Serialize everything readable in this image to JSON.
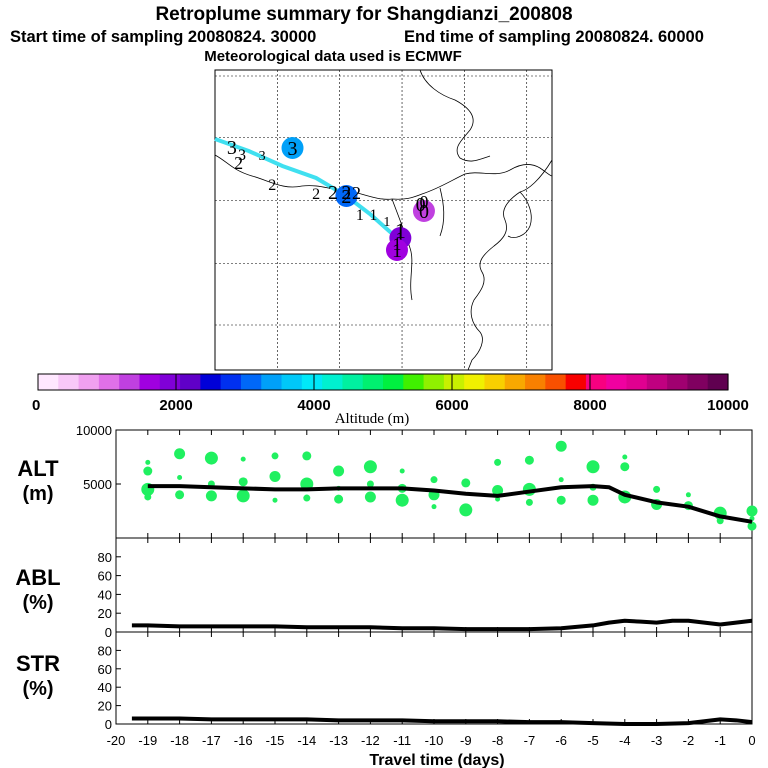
{
  "header": {
    "title": "Retroplume summary for Shangdianzi_200808",
    "start_label": "Start time of sampling 20080824. 30000",
    "end_label": "End time of sampling 20080824. 60000",
    "met_label": "Meteorological data used is ECMWF"
  },
  "colorbar": {
    "title": "Altitude (m)",
    "min": 0,
    "max": 10000,
    "ticks": [
      "0",
      "2000",
      "4000",
      "6000",
      "8000",
      "10000"
    ],
    "tick_values": [
      0,
      2000,
      4000,
      6000,
      8000,
      10000
    ],
    "colors": [
      "#ffe8ff",
      "#f8c8f8",
      "#f0a0f0",
      "#e070e8",
      "#c040e0",
      "#a000e0",
      "#8000d8",
      "#6000c8",
      "#0000d8",
      "#0030f0",
      "#0068f8",
      "#00a0f8",
      "#00c8f8",
      "#00e8f8",
      "#00f0d0",
      "#00f0a0",
      "#00f070",
      "#00f040",
      "#40f000",
      "#90f000",
      "#c8f000",
      "#f0f000",
      "#f8d000",
      "#f8a800",
      "#f88000",
      "#f85000",
      "#f80000",
      "#f80080",
      "#f000a0",
      "#e00090",
      "#c00080",
      "#a00070",
      "#800060",
      "#600050"
    ]
  },
  "map": {
    "trajectory_labels": [
      {
        "text": "3",
        "lon": 0.05,
        "lat": 0.28,
        "size": 20
      },
      {
        "text": "3",
        "lon": 0.08,
        "lat": 0.3,
        "size": 16
      },
      {
        "text": "3",
        "lon": 0.14,
        "lat": 0.3,
        "size": 14
      },
      {
        "text": "2",
        "lon": 0.07,
        "lat": 0.33,
        "size": 18
      },
      {
        "text": "2",
        "lon": 0.17,
        "lat": 0.4,
        "size": 16
      },
      {
        "text": "2",
        "lon": 0.3,
        "lat": 0.43,
        "size": 16
      },
      {
        "text": "2",
        "lon": 0.35,
        "lat": 0.43,
        "size": 20
      },
      {
        "text": "2",
        "lon": 0.39,
        "lat": 0.43,
        "size": 20
      },
      {
        "text": "2",
        "lon": 0.42,
        "lat": 0.43,
        "size": 18
      },
      {
        "text": "1",
        "lon": 0.43,
        "lat": 0.5,
        "size": 16
      },
      {
        "text": "1",
        "lon": 0.47,
        "lat": 0.5,
        "size": 16
      },
      {
        "text": "1",
        "lon": 0.51,
        "lat": 0.52,
        "size": 14
      },
      {
        "text": "1",
        "lon": 0.55,
        "lat": 0.56,
        "size": 22
      },
      {
        "text": "1",
        "lon": 0.54,
        "lat": 0.6,
        "size": 18
      },
      {
        "text": "0",
        "lon": 0.61,
        "lat": 0.47,
        "size": 20
      },
      {
        "text": "0",
        "lon": 0.62,
        "lat": 0.46,
        "size": 18
      }
    ],
    "trajectory_circles": [
      {
        "text": "3",
        "lon": 0.23,
        "lat": 0.26,
        "alt": 3500
      },
      {
        "text": "2",
        "lon": 0.39,
        "lat": 0.42,
        "alt": 3000
      },
      {
        "text": "1",
        "lon": 0.55,
        "lat": 0.56,
        "alt": 1900
      },
      {
        "text": "1",
        "lon": 0.54,
        "lat": 0.6,
        "alt": 1500
      },
      {
        "text": "0",
        "lon": 0.62,
        "lat": 0.47,
        "alt": 1200
      }
    ],
    "trajectory_line": {
      "lon": [
        0.0,
        0.1,
        0.2,
        0.3,
        0.39,
        0.46,
        0.53,
        0.55
      ],
      "lat": [
        0.23,
        0.27,
        0.32,
        0.36,
        0.42,
        0.48,
        0.55,
        0.58
      ],
      "color": "#40e0f0"
    }
  },
  "chart_data": [
    {
      "type": "line",
      "id": "ALT",
      "ylabel_line1": "ALT",
      "ylabel_line2": "(m)",
      "ylim": [
        0,
        10000
      ],
      "yticks": [
        0,
        5000,
        10000
      ],
      "ytick_labels": [
        "5000",
        "10000"
      ],
      "x": [
        -19,
        -18,
        -17,
        -16,
        -15,
        -14,
        -13,
        -12,
        -11,
        -10,
        -9,
        -8,
        -7,
        -6,
        -5,
        -4.5,
        -4,
        -3,
        -2,
        -1,
        0
      ],
      "y": [
        4800,
        4800,
        4700,
        4600,
        4500,
        4500,
        4600,
        4600,
        4600,
        4400,
        4100,
        3900,
        4300,
        4700,
        4800,
        4700,
        4000,
        3300,
        2900,
        2000,
        1500
      ],
      "scatter": [
        {
          "x": -19,
          "y": 7000
        },
        {
          "x": -19,
          "y": 6200
        },
        {
          "x": -19,
          "y": 4500
        },
        {
          "x": -19,
          "y": 3800
        },
        {
          "x": -18,
          "y": 7800
        },
        {
          "x": -18,
          "y": 5600
        },
        {
          "x": -18,
          "y": 4000
        },
        {
          "x": -17,
          "y": 7400
        },
        {
          "x": -17,
          "y": 5000
        },
        {
          "x": -17,
          "y": 3900
        },
        {
          "x": -16,
          "y": 7300
        },
        {
          "x": -16,
          "y": 5200
        },
        {
          "x": -16,
          "y": 3900
        },
        {
          "x": -15,
          "y": 7600
        },
        {
          "x": -15,
          "y": 5700
        },
        {
          "x": -15,
          "y": 3500
        },
        {
          "x": -14,
          "y": 7600
        },
        {
          "x": -14,
          "y": 5000
        },
        {
          "x": -14,
          "y": 3700
        },
        {
          "x": -13,
          "y": 6200
        },
        {
          "x": -13,
          "y": 4600
        },
        {
          "x": -13,
          "y": 3600
        },
        {
          "x": -12,
          "y": 6600
        },
        {
          "x": -12,
          "y": 5000
        },
        {
          "x": -12,
          "y": 3800
        },
        {
          "x": -11,
          "y": 6200
        },
        {
          "x": -11,
          "y": 4600
        },
        {
          "x": -11,
          "y": 3500
        },
        {
          "x": -10,
          "y": 5400
        },
        {
          "x": -10,
          "y": 4000
        },
        {
          "x": -10,
          "y": 2900
        },
        {
          "x": -9,
          "y": 5100
        },
        {
          "x": -9,
          "y": 2600
        },
        {
          "x": -8,
          "y": 7000
        },
        {
          "x": -8,
          "y": 4400
        },
        {
          "x": -8,
          "y": 3600
        },
        {
          "x": -7,
          "y": 7200
        },
        {
          "x": -7,
          "y": 4500
        },
        {
          "x": -7,
          "y": 3300
        },
        {
          "x": -6,
          "y": 8500
        },
        {
          "x": -6,
          "y": 5400
        },
        {
          "x": -6,
          "y": 3500
        },
        {
          "x": -5,
          "y": 6600
        },
        {
          "x": -5,
          "y": 4700
        },
        {
          "x": -5,
          "y": 3500
        },
        {
          "x": -4,
          "y": 7500
        },
        {
          "x": -4,
          "y": 6600
        },
        {
          "x": -4,
          "y": 3800
        },
        {
          "x": -3,
          "y": 4500
        },
        {
          "x": -3,
          "y": 3100
        },
        {
          "x": -2,
          "y": 4000
        },
        {
          "x": -2,
          "y": 3000
        },
        {
          "x": -1,
          "y": 2300
        },
        {
          "x": -1,
          "y": 1600
        },
        {
          "x": 0,
          "y": 2500
        },
        {
          "x": 0,
          "y": 1800
        },
        {
          "x": 0,
          "y": 1100
        }
      ]
    },
    {
      "type": "line",
      "id": "ABL",
      "ylabel_line1": "ABL",
      "ylabel_line2": "(%)",
      "ylim": [
        0,
        100
      ],
      "yticks": [
        0,
        20,
        40,
        60,
        80
      ],
      "ytick_labels": [
        "0",
        "20",
        "40",
        "60",
        "80"
      ],
      "x": [
        -19.5,
        -19,
        -18,
        -17,
        -16,
        -15,
        -14,
        -13,
        -12,
        -11,
        -10,
        -9,
        -8,
        -7,
        -6,
        -5,
        -4.5,
        -4,
        -3.5,
        -3,
        -2.5,
        -2,
        -1.5,
        -1,
        -0.5,
        0
      ],
      "y": [
        7,
        7,
        6,
        6,
        6,
        6,
        5,
        5,
        5,
        4,
        4,
        3,
        3,
        3,
        4,
        7,
        10,
        12,
        11,
        10,
        12,
        12,
        10,
        8,
        10,
        12
      ]
    },
    {
      "type": "line",
      "id": "STR",
      "ylabel_line1": "STR",
      "ylabel_line2": "(%)",
      "ylim": [
        0,
        100
      ],
      "yticks": [
        0,
        20,
        40,
        60,
        80
      ],
      "ytick_labels": [
        "0",
        "20",
        "40",
        "60",
        "80"
      ],
      "x": [
        -19.5,
        -19,
        -18,
        -17,
        -16,
        -15,
        -14,
        -13,
        -12,
        -11,
        -10,
        -9,
        -8,
        -7,
        -6,
        -5,
        -4,
        -3,
        -2,
        -1.5,
        -1,
        -0.5,
        0
      ],
      "y": [
        6,
        6,
        6,
        5,
        5,
        5,
        5,
        4,
        4,
        4,
        3,
        3,
        3,
        2,
        2,
        1,
        0,
        0,
        1,
        3,
        5,
        4,
        2
      ]
    }
  ],
  "xaxis": {
    "label": "Travel time (days)",
    "min": -20,
    "max": 0,
    "ticks": [
      "-20",
      "-19",
      "-18",
      "-17",
      "-16",
      "-15",
      "-14",
      "-13",
      "-12",
      "-11",
      "-10",
      "-9",
      "-8",
      "-7",
      "-6",
      "-5",
      "-4",
      "-3",
      "-2",
      "-1",
      "0"
    ],
    "tick_values": [
      -20,
      -19,
      -18,
      -17,
      -16,
      -15,
      -14,
      -13,
      -12,
      -11,
      -10,
      -9,
      -8,
      -7,
      -6,
      -5,
      -4,
      -3,
      -2,
      -1,
      0
    ]
  }
}
